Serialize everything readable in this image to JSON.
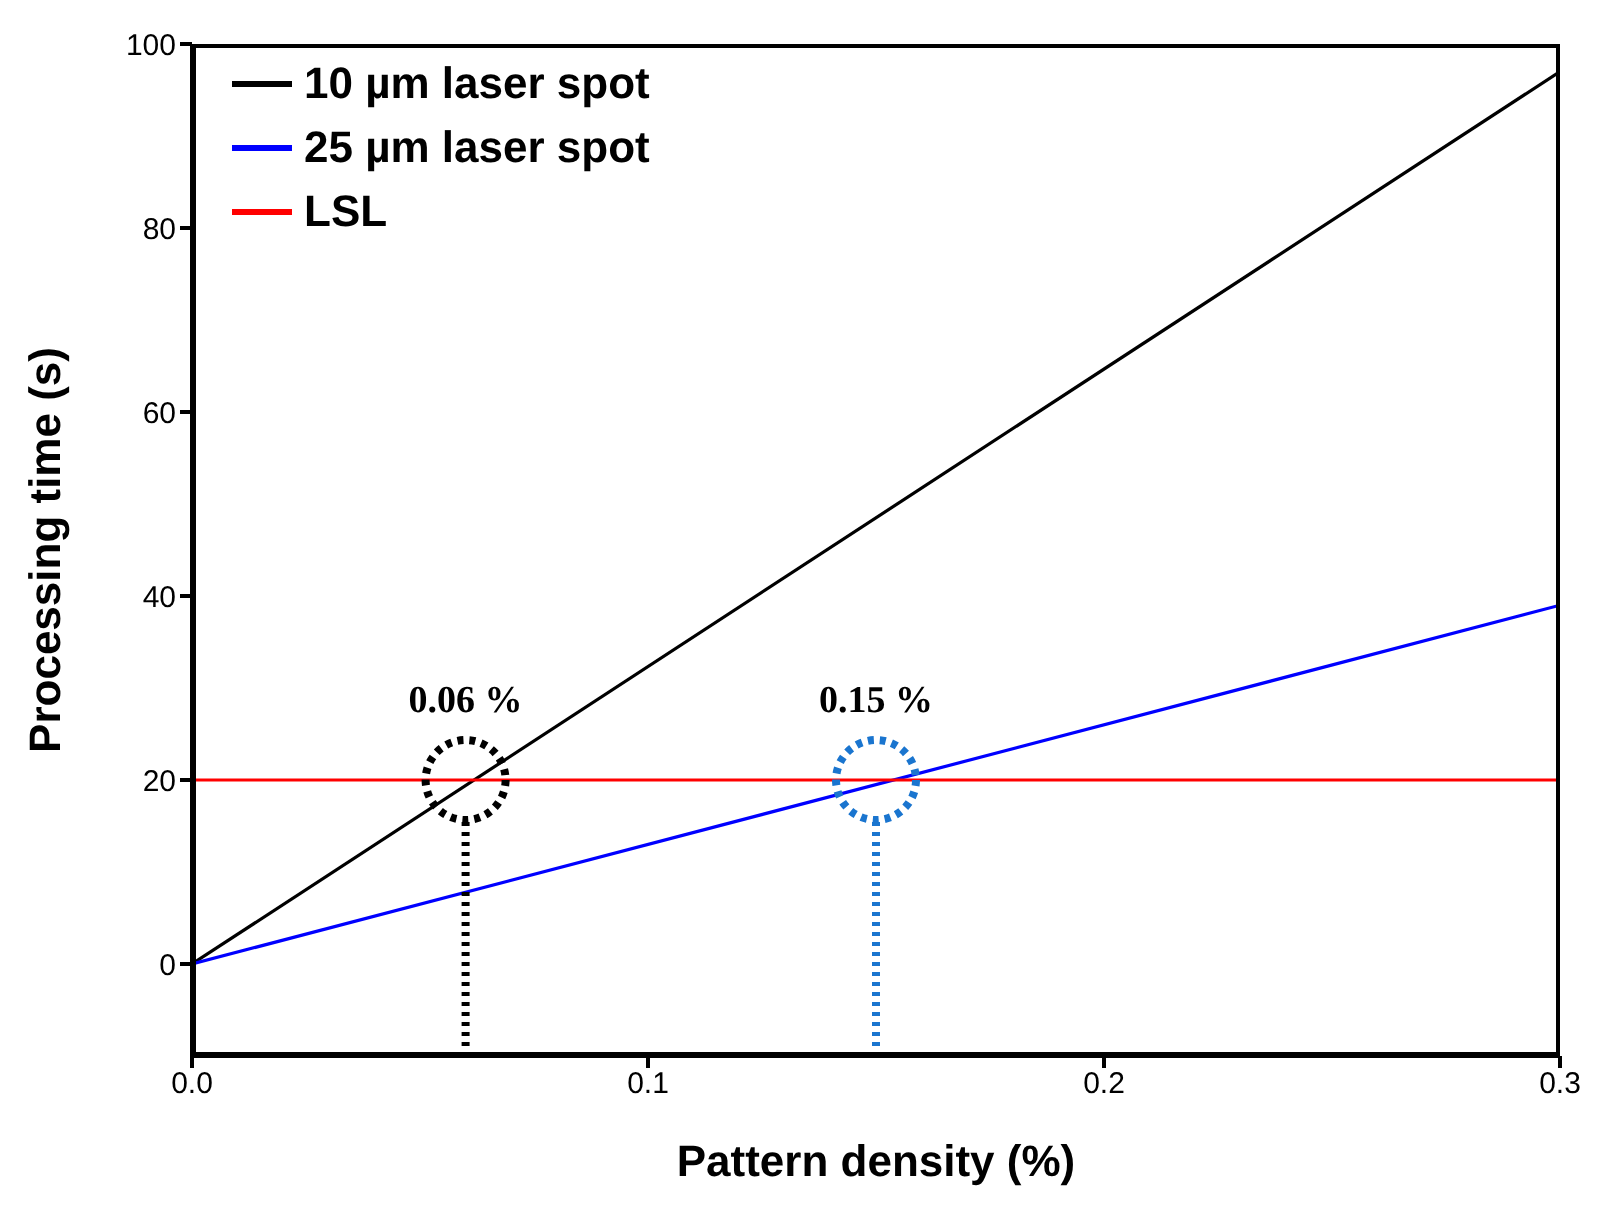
{
  "chart_data": {
    "type": "line",
    "xlabel": "Pattern density (%)",
    "ylabel": "Processing time (s)",
    "series": [
      {
        "name": "10 µm laser spot",
        "color": "#000000",
        "values": [
          0,
          97
        ]
      },
      {
        "name": "25 µm laser spot",
        "color": "#0000ff",
        "values": [
          0,
          39
        ]
      },
      {
        "name": "LSL",
        "color": "#ff0000",
        "values": [
          20,
          20
        ]
      }
    ],
    "x": [
      0,
      0.3
    ],
    "annotations": [
      {
        "text": "0.06 %",
        "x": 0.06,
        "y": 20
      },
      {
        "text": "0.15 %",
        "x": 0.15,
        "y": 20
      }
    ],
    "ref_lines": [
      {
        "axis": "x",
        "value": 0.06,
        "color": "#000000",
        "line_style": "dotted"
      },
      {
        "axis": "x",
        "value": 0.15,
        "color": "#1a75cf",
        "line_style": "dotted"
      }
    ],
    "xlim": [
      0,
      0.3
    ],
    "xticks": [
      {
        "value": 0,
        "label": "0.0"
      },
      0.1,
      0.2,
      0.3
    ],
    "ylim": [
      -10,
      100
    ],
    "yticks": [
      0,
      20,
      40,
      60,
      80,
      100
    ],
    "grid": false,
    "legend": "top left",
    "marker": "none",
    "line_style": "solid"
  }
}
